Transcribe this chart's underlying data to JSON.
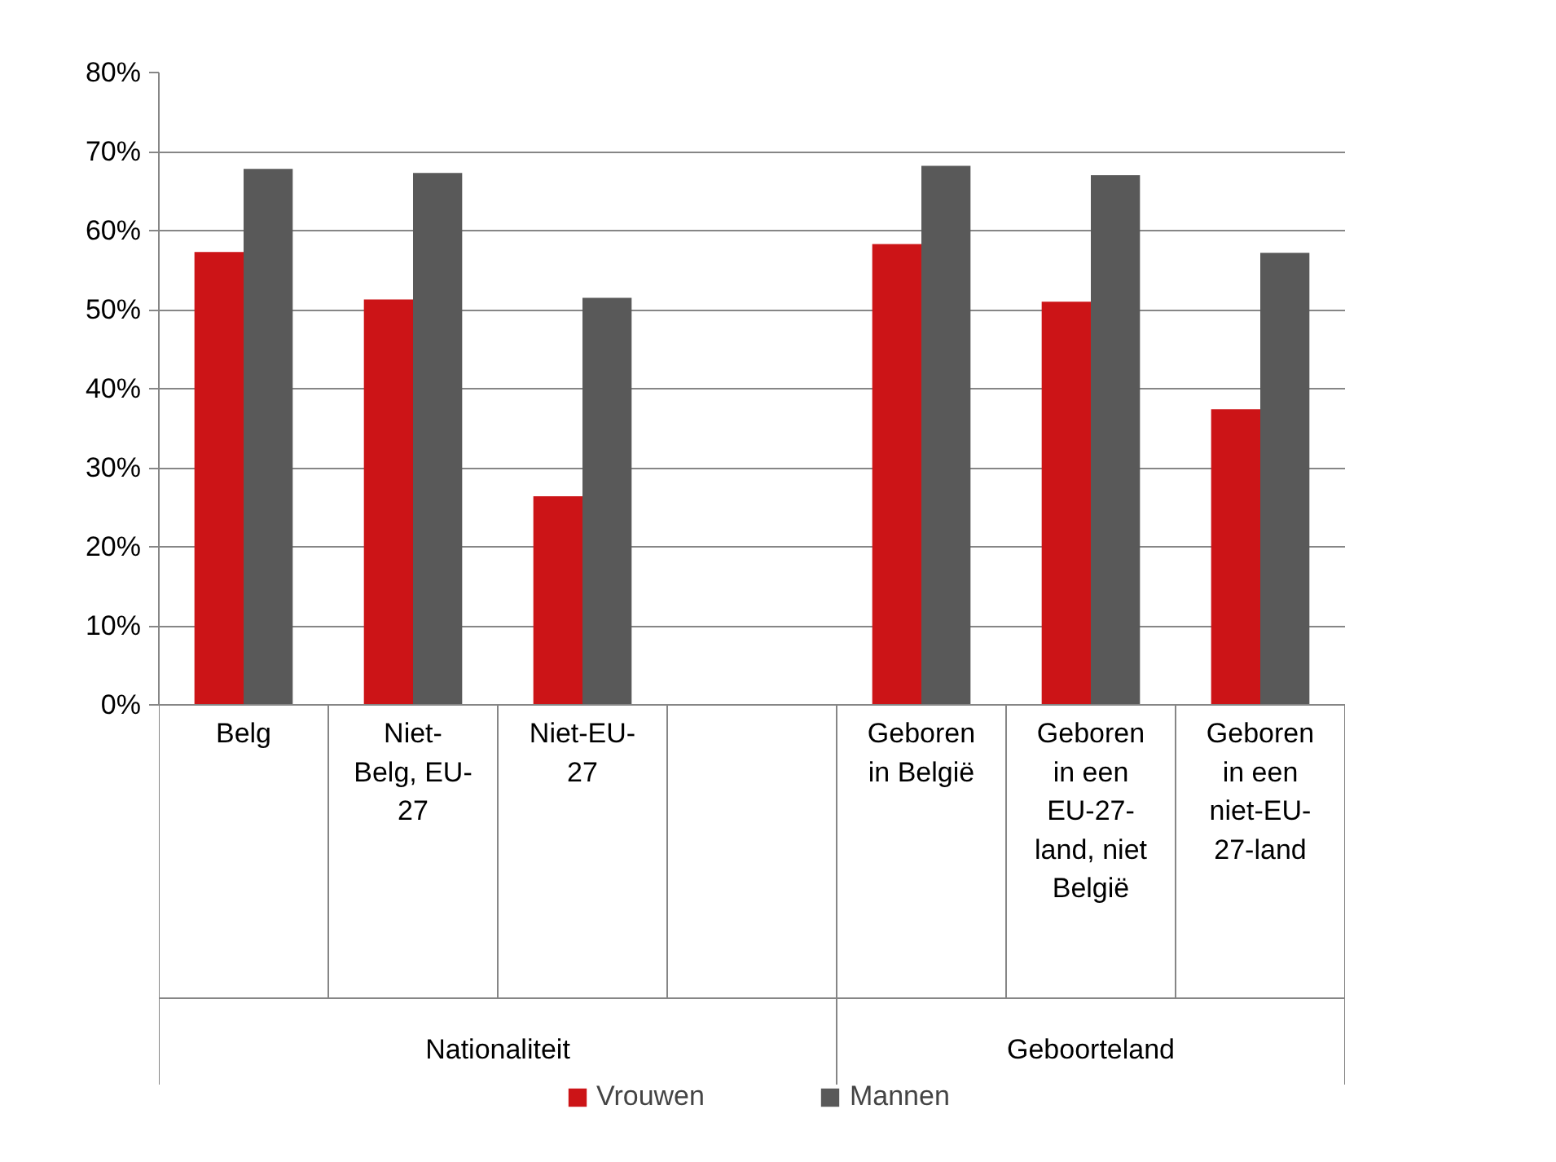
{
  "chart_data": {
    "type": "bar",
    "categories": [
      "Belg",
      "Niet-\nBelg, EU-\n27",
      "Niet-EU-\n27",
      null,
      "Geboren\nin België",
      "Geboren\nin een\nEU-27-\nland, niet\nBelgië",
      "Geboren\nin een\nniet-EU-\n27-land"
    ],
    "series": [
      {
        "name": "Vrouwen",
        "color": "#cc1417",
        "values": [
          57.3,
          51.3,
          26.4,
          null,
          58.3,
          51.0,
          37.4
        ]
      },
      {
        "name": "Mannen",
        "color": "#595959",
        "values": [
          67.8,
          67.3,
          51.5,
          null,
          68.2,
          67.0,
          57.2
        ]
      }
    ],
    "annotations": [
      "Nationaliteit",
      "Geboorteland"
    ],
    "ylim": [
      0,
      80
    ],
    "yticks": [
      {
        "value": 0,
        "label": "0%"
      },
      {
        "value": 10,
        "label": "10%"
      },
      {
        "value": 20,
        "label": "20%"
      },
      {
        "value": 30,
        "label": "30%"
      },
      {
        "value": 40,
        "label": "40%"
      },
      {
        "value": 50,
        "label": "50%"
      },
      {
        "value": 60,
        "label": "60%"
      },
      {
        "value": 70,
        "label": "70%"
      },
      {
        "value": 80,
        "label": "80%"
      }
    ],
    "grid": "y",
    "legend": "bottom"
  }
}
